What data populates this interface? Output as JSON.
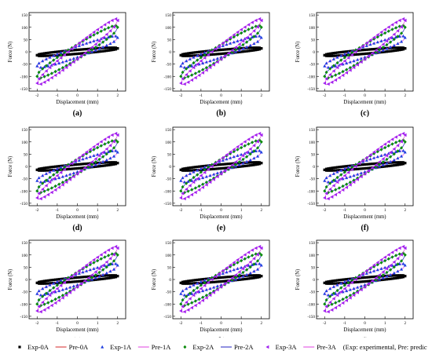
{
  "figure": {
    "note": "(Exp: experimental, Pre: predicted)"
  },
  "legend": [
    {
      "label": "Exp-0A",
      "color": "#000000",
      "marker": "square"
    },
    {
      "label": "Pre-0A",
      "color": "#d62728",
      "marker": "line"
    },
    {
      "label": "Exp-1A",
      "color": "#1f3fe0",
      "marker": "triangle"
    },
    {
      "label": "Pre-1A",
      "color": "#e040e0",
      "marker": "line"
    },
    {
      "label": "Exp-2A",
      "color": "#0a8a0a",
      "marker": "diamond"
    },
    {
      "label": "Pre-2A",
      "color": "#2020c0",
      "marker": "line"
    },
    {
      "label": "Exp-3A",
      "color": "#a020f0",
      "marker": "left-triangle"
    },
    {
      "label": "Pre-3A",
      "color": "#e040e0",
      "marker": "line"
    }
  ],
  "chart_data": [
    {
      "panel": "(a)",
      "type": "scatter",
      "xlabel": "Displacement (mm)",
      "ylabel": "Force (N)",
      "xlim": [
        -2.4,
        2.4
      ],
      "ylim": [
        -160,
        160
      ],
      "xticks": [
        "-2",
        "-1",
        "0",
        "1",
        "2"
      ],
      "yticks": [
        "-150",
        "-100",
        "-50",
        "0",
        "50",
        "100",
        "150"
      ],
      "series": [
        {
          "name": "Exp-0A",
          "x": [
            -2,
            0,
            2,
            0,
            -2
          ],
          "y": [
            -14,
            0,
            14,
            0,
            -14
          ],
          "half_width": [
            8,
            8
          ]
        },
        {
          "name": "Exp-1A",
          "x": [
            -2,
            2
          ],
          "y": [
            -58,
            58
          ],
          "half_width": [
            22,
            22
          ]
        },
        {
          "name": "Exp-2A",
          "x": [
            -2,
            2
          ],
          "y": [
            -100,
            100
          ],
          "half_width": [
            30,
            30
          ]
        },
        {
          "name": "Exp-3A",
          "x": [
            -2,
            2
          ],
          "y": [
            -128,
            128
          ],
          "half_width": [
            30,
            30
          ]
        }
      ]
    },
    {
      "panel": "(b)",
      "type": "scatter",
      "xlabel": "Displacement (mm)",
      "ylabel": "Force (N)",
      "xlim": [
        -2.4,
        2.4
      ],
      "ylim": [
        -160,
        160
      ],
      "xticks": [
        "-2",
        "-1",
        "0",
        "1",
        "2"
      ],
      "yticks": [
        "-150",
        "-100",
        "-50",
        "0",
        "50",
        "100",
        "150"
      ],
      "series": [
        {
          "name": "Exp-0A",
          "x": [
            -2,
            2
          ],
          "y": [
            -14,
            14
          ],
          "half_width": [
            8,
            8
          ]
        },
        {
          "name": "Exp-1A",
          "x": [
            -2,
            2
          ],
          "y": [
            -58,
            58
          ],
          "half_width": [
            22,
            22
          ]
        },
        {
          "name": "Exp-2A",
          "x": [
            -2,
            2
          ],
          "y": [
            -100,
            100
          ],
          "half_width": [
            30,
            30
          ]
        },
        {
          "name": "Exp-3A",
          "x": [
            -2,
            2
          ],
          "y": [
            -128,
            128
          ],
          "half_width": [
            30,
            30
          ]
        }
      ]
    },
    {
      "panel": "(c)",
      "type": "scatter",
      "xlabel": "Displacement (mm)",
      "ylabel": "Force (N)",
      "xlim": [
        -2.4,
        2.4
      ],
      "ylim": [
        -160,
        160
      ],
      "xticks": [
        "-2",
        "-1",
        "0",
        "1",
        "2"
      ],
      "yticks": [
        "-150",
        "-100",
        "-50",
        "0",
        "50",
        "100",
        "150"
      ],
      "series": [
        {
          "name": "Exp-0A",
          "x": [
            -2,
            2
          ],
          "y": [
            -14,
            14
          ],
          "half_width": [
            8,
            8
          ]
        },
        {
          "name": "Exp-1A",
          "x": [
            -2,
            2
          ],
          "y": [
            -58,
            58
          ],
          "half_width": [
            22,
            22
          ]
        },
        {
          "name": "Exp-2A",
          "x": [
            -2,
            2
          ],
          "y": [
            -100,
            100
          ],
          "half_width": [
            30,
            30
          ]
        },
        {
          "name": "Exp-3A",
          "x": [
            -2,
            2
          ],
          "y": [
            -128,
            128
          ],
          "half_width": [
            30,
            30
          ]
        }
      ]
    },
    {
      "panel": "(d)",
      "type": "scatter",
      "xlabel": "Displacement (mm)",
      "ylabel": "Force (N)",
      "xlim": [
        -2.4,
        2.4
      ],
      "ylim": [
        -160,
        160
      ],
      "xticks": [
        "-2",
        "-1",
        "0",
        "1",
        "2"
      ],
      "yticks": [
        "-150",
        "-100",
        "-50",
        "0",
        "50",
        "100",
        "150"
      ],
      "series": [
        {
          "name": "Exp-0A",
          "x": [
            -2,
            2
          ],
          "y": [
            -14,
            14
          ],
          "half_width": [
            8,
            8
          ]
        },
        {
          "name": "Exp-1A",
          "x": [
            -2,
            2
          ],
          "y": [
            -58,
            58
          ],
          "half_width": [
            22,
            22
          ]
        },
        {
          "name": "Exp-2A",
          "x": [
            -2,
            2
          ],
          "y": [
            -100,
            100
          ],
          "half_width": [
            30,
            30
          ]
        },
        {
          "name": "Exp-3A",
          "x": [
            -2,
            2
          ],
          "y": [
            -128,
            128
          ],
          "half_width": [
            30,
            30
          ]
        }
      ]
    },
    {
      "panel": "(e)",
      "type": "scatter",
      "xlabel": "Displacement (mm)",
      "ylabel": "Force (N)",
      "xlim": [
        -2.4,
        2.4
      ],
      "ylim": [
        -160,
        160
      ],
      "xticks": [
        "-2",
        "-1",
        "0",
        "1",
        "2"
      ],
      "yticks": [
        "-150",
        "-100",
        "-50",
        "0",
        "50",
        "100",
        "150"
      ],
      "series": [
        {
          "name": "Exp-0A",
          "x": [
            -2,
            2
          ],
          "y": [
            -14,
            14
          ],
          "half_width": [
            8,
            8
          ]
        },
        {
          "name": "Exp-1A",
          "x": [
            -2,
            2
          ],
          "y": [
            -58,
            58
          ],
          "half_width": [
            22,
            22
          ]
        },
        {
          "name": "Exp-2A",
          "x": [
            -2,
            2
          ],
          "y": [
            -100,
            100
          ],
          "half_width": [
            30,
            30
          ]
        },
        {
          "name": "Exp-3A",
          "x": [
            -2,
            2
          ],
          "y": [
            -128,
            128
          ],
          "half_width": [
            30,
            30
          ]
        }
      ]
    },
    {
      "panel": "(f)",
      "type": "scatter",
      "xlabel": "Displacement (mm)",
      "ylabel": "Force (N)",
      "xlim": [
        -2.4,
        2.4
      ],
      "ylim": [
        -160,
        160
      ],
      "xticks": [
        "-2",
        "-1",
        "0",
        "1",
        "2"
      ],
      "yticks": [
        "-150",
        "-100",
        "-50",
        "0",
        "50",
        "100",
        "150"
      ],
      "series": [
        {
          "name": "Exp-0A",
          "x": [
            -2,
            2
          ],
          "y": [
            -14,
            14
          ],
          "half_width": [
            8,
            8
          ]
        },
        {
          "name": "Exp-1A",
          "x": [
            -2,
            2
          ],
          "y": [
            -58,
            58
          ],
          "half_width": [
            22,
            22
          ]
        },
        {
          "name": "Exp-2A",
          "x": [
            -2,
            2
          ],
          "y": [
            -100,
            100
          ],
          "half_width": [
            30,
            30
          ]
        },
        {
          "name": "Exp-3A",
          "x": [
            -2,
            2
          ],
          "y": [
            -128,
            128
          ],
          "half_width": [
            30,
            30
          ]
        }
      ]
    },
    {
      "panel": "(g)",
      "type": "scatter",
      "xlabel": "Displacement (mm)",
      "ylabel": "Force (N)",
      "xlim": [
        -2.4,
        2.4
      ],
      "ylim": [
        -160,
        160
      ],
      "xticks": [
        "-2",
        "-1",
        "0",
        "1",
        "2"
      ],
      "yticks": [
        "-150",
        "-100",
        "-50",
        "0",
        "50",
        "100",
        "150"
      ],
      "series": [
        {
          "name": "Exp-0A",
          "x": [
            -2,
            2
          ],
          "y": [
            -14,
            14
          ],
          "half_width": [
            8,
            8
          ]
        },
        {
          "name": "Exp-1A",
          "x": [
            -2,
            2
          ],
          "y": [
            -58,
            58
          ],
          "half_width": [
            22,
            22
          ]
        },
        {
          "name": "Exp-2A",
          "x": [
            -2,
            2
          ],
          "y": [
            -100,
            100
          ],
          "half_width": [
            30,
            30
          ]
        },
        {
          "name": "Exp-3A",
          "x": [
            -2,
            2
          ],
          "y": [
            -128,
            128
          ],
          "half_width": [
            30,
            30
          ]
        }
      ]
    },
    {
      "panel": "(h)",
      "type": "scatter",
      "xlabel": "Displacement (mm)",
      "ylabel": "Force (N)",
      "xlim": [
        -2.4,
        2.4
      ],
      "ylim": [
        -160,
        160
      ],
      "xticks": [
        "-2",
        "-1",
        "0",
        "1",
        "2"
      ],
      "yticks": [
        "-150",
        "-100",
        "-50",
        "0",
        "50",
        "100",
        "150"
      ],
      "series": [
        {
          "name": "Exp-0A",
          "x": [
            -2,
            2
          ],
          "y": [
            -14,
            14
          ],
          "half_width": [
            8,
            8
          ]
        },
        {
          "name": "Exp-1A",
          "x": [
            -2,
            2
          ],
          "y": [
            -58,
            58
          ],
          "half_width": [
            22,
            22
          ]
        },
        {
          "name": "Exp-2A",
          "x": [
            -2,
            2
          ],
          "y": [
            -100,
            100
          ],
          "half_width": [
            30,
            30
          ]
        },
        {
          "name": "Exp-3A",
          "x": [
            -2,
            2
          ],
          "y": [
            -128,
            128
          ],
          "half_width": [
            30,
            30
          ]
        }
      ]
    },
    {
      "panel": "(i)",
      "type": "scatter",
      "xlabel": "Displacement (mm)",
      "ylabel": "Force (N)",
      "xlim": [
        -2.4,
        2.4
      ],
      "ylim": [
        -160,
        160
      ],
      "xticks": [
        "-2",
        "-1",
        "0",
        "1",
        "2"
      ],
      "yticks": [
        "-150",
        "-100",
        "-50",
        "0",
        "50",
        "100",
        "150"
      ],
      "series": [
        {
          "name": "Exp-0A",
          "x": [
            -2,
            2
          ],
          "y": [
            -14,
            14
          ],
          "half_width": [
            8,
            8
          ]
        },
        {
          "name": "Exp-1A",
          "x": [
            -2,
            2
          ],
          "y": [
            -58,
            58
          ],
          "half_width": [
            22,
            22
          ]
        },
        {
          "name": "Exp-2A",
          "x": [
            -2,
            2
          ],
          "y": [
            -100,
            100
          ],
          "half_width": [
            30,
            30
          ]
        },
        {
          "name": "Exp-3A",
          "x": [
            -2,
            2
          ],
          "y": [
            -128,
            128
          ],
          "half_width": [
            30,
            30
          ]
        }
      ]
    }
  ]
}
